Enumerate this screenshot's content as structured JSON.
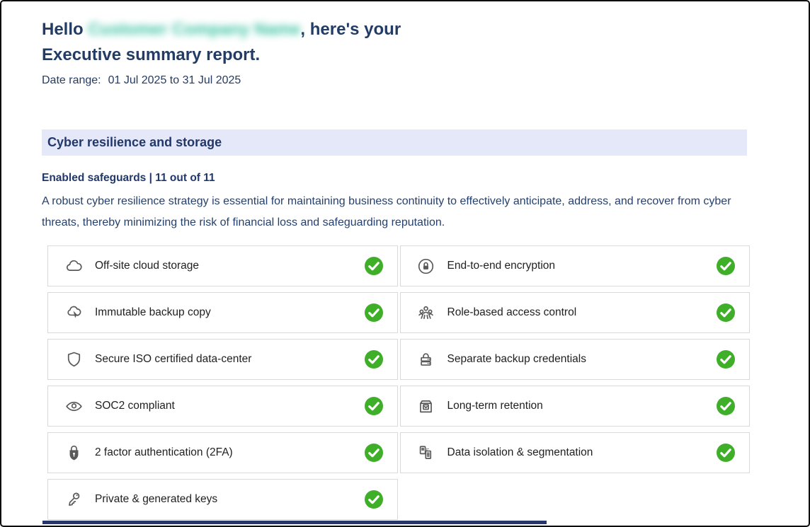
{
  "header": {
    "greeting_prefix": "Hello ",
    "company_name_blurred": "Customer Company Name",
    "greeting_suffix": ", here's your",
    "title_line2": "Executive summary report.",
    "date_range_label": "Date range:",
    "date_range_value": "01 Jul 2025 to 31 Jul 2025"
  },
  "section": {
    "title": "Cyber resilience and storage",
    "enabled_count_line": "Enabled safeguards | 11 out of 11",
    "description": "A robust cyber resilience strategy is essential for maintaining business continuity to effectively anticipate, address, and recover from cyber threats, thereby minimizing the risk of financial loss and safeguarding reputation."
  },
  "safeguards": [
    {
      "label": "Off-site cloud storage",
      "icon": "cloud-icon",
      "status": "enabled"
    },
    {
      "label": "End-to-end encryption",
      "icon": "lock-circle-icon",
      "status": "enabled"
    },
    {
      "label": "Immutable backup copy",
      "icon": "cloud-lock-icon",
      "status": "enabled"
    },
    {
      "label": "Role-based access control",
      "icon": "users-group-icon",
      "status": "enabled"
    },
    {
      "label": "Secure ISO certified data-center",
      "icon": "shield-icon",
      "status": "enabled"
    },
    {
      "label": "Separate backup credentials",
      "icon": "server-lock-icon",
      "status": "enabled"
    },
    {
      "label": "SOC2 compliant",
      "icon": "eye-icon",
      "status": "enabled"
    },
    {
      "label": "Long-term retention",
      "icon": "archive-box-icon",
      "status": "enabled"
    },
    {
      "label": "2 factor authentication (2FA)",
      "icon": "padlock-icon",
      "status": "enabled"
    },
    {
      "label": "Data isolation & segmentation",
      "icon": "documents-icon",
      "status": "enabled"
    },
    {
      "label": "Private & generated keys",
      "icon": "key-icon",
      "status": "enabled"
    }
  ],
  "colors": {
    "status_green": "#3fae29",
    "heading_navy": "#233c66",
    "section_header_bg": "#e4e8f8",
    "blurred_name_teal": "#38c2a2",
    "icon_gray": "#595959"
  }
}
